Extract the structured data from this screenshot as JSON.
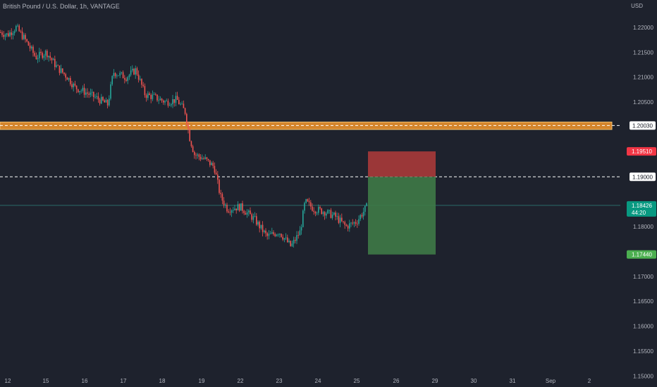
{
  "header": {
    "symbol_title": "British Pound / U.S. Dollar, 1h, VANTAGE",
    "currency": "USD"
  },
  "chart_data": {
    "type": "candlestick",
    "title": "British Pound / U.S. Dollar, 1h, VANTAGE",
    "y_axis_unit": "USD",
    "y_ticks": [
      "1.22000",
      "1.21500",
      "1.21000",
      "1.20500",
      "1.19000",
      "1.18000",
      "1.17000",
      "1.16500",
      "1.16000",
      "1.15500",
      "1.15000"
    ],
    "x_ticks": [
      "12",
      "15",
      "16",
      "17",
      "18",
      "19",
      "22",
      "23",
      "24",
      "25",
      "26",
      "29",
      "30",
      "31",
      "Sep",
      "2"
    ],
    "ylim": [
      1.1485,
      1.2255
    ],
    "price_path": [
      [
        0,
        1.219
      ],
      [
        10,
        1.2185
      ],
      [
        22,
        1.22
      ],
      [
        35,
        1.2175
      ],
      [
        50,
        1.214
      ],
      [
        65,
        1.215
      ],
      [
        80,
        1.212
      ],
      [
        95,
        1.21
      ],
      [
        105,
        1.208
      ],
      [
        120,
        1.207
      ],
      [
        140,
        1.2055
      ],
      [
        152,
        1.2045
      ],
      [
        160,
        1.211
      ],
      [
        178,
        1.21
      ],
      [
        192,
        1.2115
      ],
      [
        205,
        1.2065
      ],
      [
        218,
        1.206
      ],
      [
        235,
        1.205
      ],
      [
        250,
        1.2055
      ],
      [
        262,
        1.203
      ],
      [
        268,
        1.198
      ],
      [
        275,
        1.1945
      ],
      [
        290,
        1.1935
      ],
      [
        303,
        1.192
      ],
      [
        312,
        1.186
      ],
      [
        322,
        1.1835
      ],
      [
        340,
        1.184
      ],
      [
        360,
        1.1815
      ],
      [
        378,
        1.178
      ],
      [
        395,
        1.179
      ],
      [
        412,
        1.176
      ],
      [
        425,
        1.179
      ],
      [
        432,
        1.185
      ],
      [
        445,
        1.1835
      ],
      [
        460,
        1.183
      ],
      [
        475,
        1.182
      ],
      [
        490,
        1.18
      ],
      [
        505,
        1.181
      ],
      [
        521,
        1.1843
      ]
    ],
    "horizontal_lines": [
      {
        "price": 1.2003,
        "label": "1.20030",
        "style": "dashed",
        "color": "#ffffff"
      },
      {
        "price": 1.19,
        "label": "1.19000",
        "style": "dashed",
        "color": "#ffffff"
      }
    ],
    "zone": {
      "price_top": 1.201,
      "price_bottom": 1.1995,
      "color": "#d4852c"
    },
    "position": {
      "entry": 1.19,
      "stop_loss": 1.1951,
      "take_profit": 1.1744,
      "stop_color": "#a83a3a",
      "target_color": "#3e7a47"
    },
    "price_labels": [
      {
        "label": "1.19510",
        "price": 1.1951,
        "color": "#f23645"
      },
      {
        "label": "1.18426",
        "sublabel": "44:20",
        "price": 1.18426,
        "color": "#089981"
      },
      {
        "label": "1.17440",
        "price": 1.1744,
        "color": "#4caf50"
      }
    ],
    "last_price": 1.18426,
    "countdown": "44:20",
    "colors": {
      "up": "#26a69a",
      "down": "#ef5350",
      "background": "#1e222d",
      "text": "#b2b5be"
    }
  }
}
